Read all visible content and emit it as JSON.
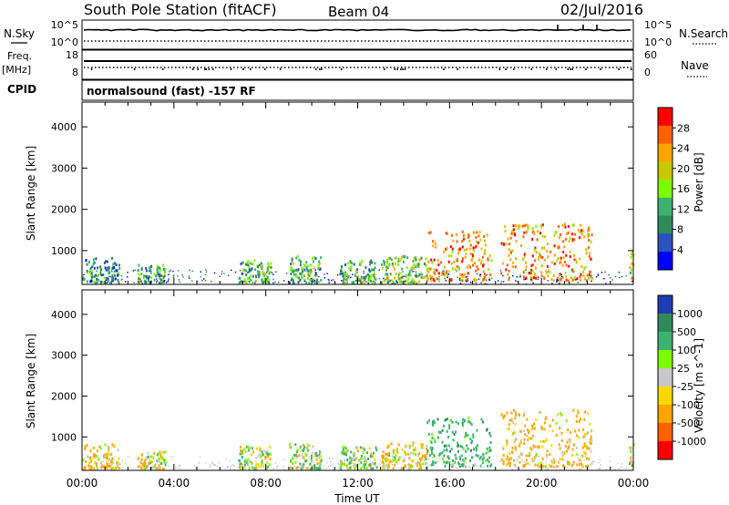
{
  "header": {
    "station": "South Pole Station (fitACF)",
    "beam": "Beam 04",
    "date": "02/Jul/2016"
  },
  "top_panels": {
    "nsky": {
      "label": "N.Sky",
      "left_ticks": [
        "10^5",
        "10^0"
      ],
      "right_ticks": [
        "10^5",
        "10^0"
      ],
      "right_label": "N.Search"
    },
    "freq": {
      "label_line1": "Freq.",
      "label_line2": "[MHz]",
      "left_ticks": [
        "18",
        "8"
      ],
      "right_ticks": [
        "60",
        "0"
      ],
      "right_label": "Nave"
    },
    "cpid": {
      "label": "CPID",
      "text": "normalsound (fast) -157 RF"
    }
  },
  "colors": {
    "frame": "#000000",
    "power_scale": [
      "#0000ff",
      "#2a52be",
      "#2e8b57",
      "#3cb371",
      "#7cfc00",
      "#c8c800",
      "#ffa500",
      "#ff6000",
      "#ff0000"
    ],
    "velocity_scale": [
      "#1e3cb4",
      "#2e8b57",
      "#3cb371",
      "#7cfc00",
      "#c8c8c8",
      "#ffd700",
      "#ffa500",
      "#ff6000",
      "#ff0000"
    ]
  },
  "chart_data": [
    {
      "type": "heatmap",
      "name": "power",
      "xlabel": "",
      "ylabel": "Slant Range [km]",
      "y_ticks": [
        "4000",
        "3000",
        "2000",
        "1000"
      ],
      "y_tick_values": [
        4000,
        3000,
        2000,
        1000
      ],
      "ylim": [
        180,
        4600
      ],
      "xlim": [
        0,
        24
      ],
      "colorbar": {
        "label": "Power [dB]",
        "ticks": [
          "28",
          "24",
          "20",
          "16",
          "12",
          "8",
          "4"
        ],
        "tick_values": [
          28,
          24,
          20,
          16,
          12,
          8,
          4
        ],
        "range": [
          0,
          32
        ]
      },
      "echo_regions": [
        {
          "t0": 0.0,
          "t1": 1.6,
          "r0": 250,
          "r1": 850,
          "level": 9
        },
        {
          "t0": 2.4,
          "t1": 3.6,
          "r0": 250,
          "r1": 700,
          "level": 12
        },
        {
          "t0": 6.8,
          "t1": 8.2,
          "r0": 250,
          "r1": 800,
          "level": 13
        },
        {
          "t0": 9.0,
          "t1": 10.4,
          "r0": 250,
          "r1": 900,
          "level": 12
        },
        {
          "t0": 11.2,
          "t1": 12.8,
          "r0": 250,
          "r1": 800,
          "level": 13
        },
        {
          "t0": 13.0,
          "t1": 15.0,
          "r0": 250,
          "r1": 900,
          "level": 16
        },
        {
          "t0": 15.0,
          "t1": 17.8,
          "r0": 300,
          "r1": 1500,
          "level": 24
        },
        {
          "t0": 18.2,
          "t1": 22.2,
          "r0": 300,
          "r1": 1700,
          "level": 24
        },
        {
          "t0": 23.8,
          "t1": 24.0,
          "r0": 300,
          "r1": 1000,
          "level": 18
        }
      ]
    },
    {
      "type": "heatmap",
      "name": "velocity",
      "xlabel": "Time UT",
      "ylabel": "Slant Range [km]",
      "x_ticks": [
        "00:00",
        "04:00",
        "08:00",
        "12:00",
        "16:00",
        "20:00",
        "00:00"
      ],
      "x_tick_values": [
        0,
        4,
        8,
        12,
        16,
        20,
        24
      ],
      "y_ticks": [
        "4000",
        "3000",
        "2000",
        "1000"
      ],
      "y_tick_values": [
        4000,
        3000,
        2000,
        1000
      ],
      "ylim": [
        180,
        4600
      ],
      "xlim": [
        0,
        24
      ],
      "colorbar": {
        "label": "Velocity [m s^-1]",
        "ticks": [
          "1000",
          "500",
          "100",
          "25",
          "-25",
          "-100",
          "-500",
          "-1000"
        ],
        "tick_values": [
          1000,
          500,
          100,
          25,
          -25,
          -100,
          -500,
          -1000
        ]
      },
      "echo_regions": [
        {
          "t0": 0.0,
          "t1": 1.6,
          "r0": 250,
          "r1": 850,
          "level": -150
        },
        {
          "t0": 2.4,
          "t1": 3.6,
          "r0": 250,
          "r1": 700,
          "level": -100
        },
        {
          "t0": 6.8,
          "t1": 8.2,
          "r0": 250,
          "r1": 800,
          "level": 60
        },
        {
          "t0": 9.0,
          "t1": 10.4,
          "r0": 250,
          "r1": 900,
          "level": 80
        },
        {
          "t0": 11.2,
          "t1": 12.8,
          "r0": 250,
          "r1": 800,
          "level": 50
        },
        {
          "t0": 13.0,
          "t1": 15.0,
          "r0": 250,
          "r1": 900,
          "level": -120
        },
        {
          "t0": 15.0,
          "t1": 17.8,
          "r0": 300,
          "r1": 1500,
          "level": 300
        },
        {
          "t0": 18.2,
          "t1": 22.2,
          "r0": 300,
          "r1": 1700,
          "level": -200
        },
        {
          "t0": 23.8,
          "t1": 24.0,
          "r0": 300,
          "r1": 1000,
          "level": -100
        }
      ]
    }
  ]
}
